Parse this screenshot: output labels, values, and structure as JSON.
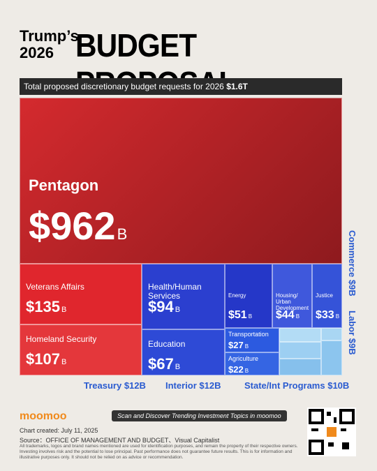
{
  "chart_data": {
    "type": "treemap",
    "title_small": "Trump’s 2026",
    "title": "BUDGET PROPOSAL",
    "subtitle": "Total proposed discretionary budget requests for 2026",
    "total": "$1.6T",
    "unit": "B",
    "categories": [
      "Pentagon",
      "Veterans Affairs",
      "Homeland Security",
      "Health/Human Services",
      "Education",
      "Energy",
      "Housing/ Urban Development",
      "Justice",
      "Transportation",
      "Agriculture",
      "Commerce",
      "Labor",
      "Treasury",
      "Interior",
      "State/Int Programs"
    ],
    "values": [
      962,
      135,
      107,
      94,
      67,
      51,
      44,
      33,
      27,
      22,
      9,
      9,
      12,
      12,
      10
    ],
    "value_labels": [
      "$962",
      "$135",
      "$107",
      "$94",
      "$67",
      "$51",
      "$44",
      "$33",
      "$27",
      "$22",
      "$9",
      "$9",
      "$12",
      "$12",
      "$10"
    ],
    "colors": [
      "#d42a2e",
      "#e0262d",
      "#e4373b",
      "#2b3fcf",
      "#2e4ad6",
      "#2537c8",
      "#3f58dc",
      "#3553d8",
      "#2c5ae0",
      "#3565e3",
      "#a9d6f3",
      "#8cc5ee",
      "#9dcff2",
      "#86c0ec",
      "#b3dcf5"
    ],
    "footer": {
      "brand": "moomoo",
      "slogan": "Scan and Discover Trending Investment Topics in moomoo",
      "created": "Chart created: July 11, 2025",
      "source": "Source：OFFICE OF MANAGEMENT AND BUDGET、Visual Capitalist",
      "disclaimer": "All trademarks, logos and brand names mentioned are used for identification purposes, and remain the property of their respective owners. Investing involves risk and the potential to lose principal. Past performance does not guarantee future results. This is for information and illustrative purposes only. It should not be relied on as advice or recommendation."
    }
  }
}
